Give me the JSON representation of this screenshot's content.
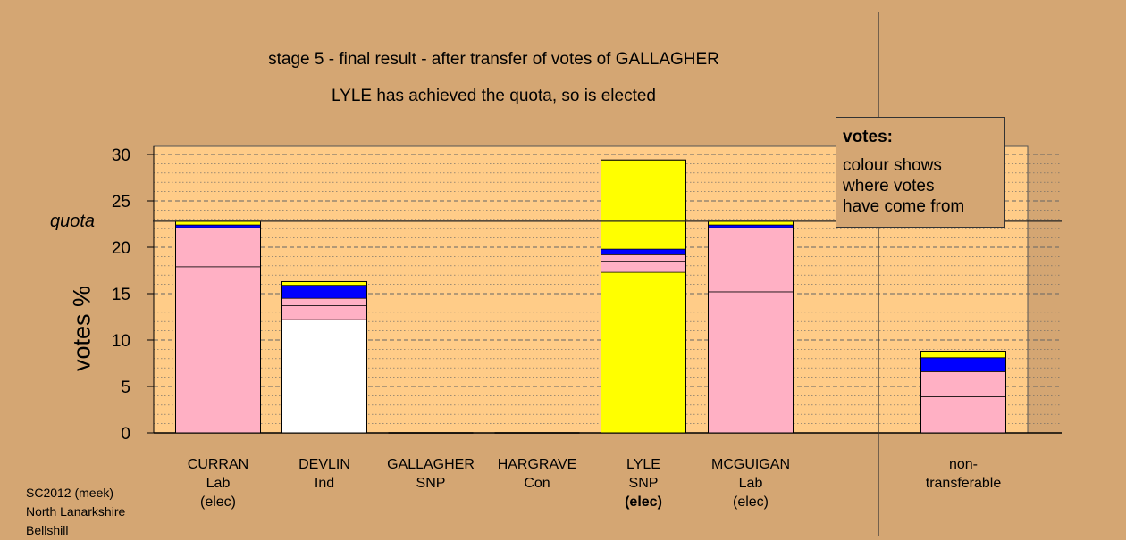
{
  "title_line1": "stage 5 - final result - after transfer of votes of GALLAGHER",
  "title_line2": "LYLE has achieved the quota, so is elected",
  "legend": {
    "heading": "votes:",
    "text": [
      "colour shows",
      "where votes",
      "have come from"
    ]
  },
  "footer": [
    "SC2012 (meek)",
    "North Lanarkshire",
    "Bellshill"
  ],
  "colors": {
    "background": "#d4a673",
    "plot_area": "#ffcc88",
    "Lab": "#ffb0c4",
    "Ind": "#ffffff",
    "SNP": "#ffff00",
    "Con": "#0000ff"
  },
  "chart_data": {
    "type": "bar",
    "stacked": true,
    "ylabel": "votes %",
    "ylim": [
      0,
      30
    ],
    "yticks": [
      "0",
      "5",
      "10",
      "15",
      "20",
      "25",
      "30"
    ],
    "quota": 22.8,
    "quota_label": "quota",
    "categories": [
      {
        "name": "CURRAN",
        "lines": [
          "Lab",
          "(elec)"
        ],
        "bold_line": -1,
        "segments": [
          {
            "party": "Lab",
            "value": 17.9
          },
          {
            "party": "Lab",
            "value": 4.2
          },
          {
            "party": "Con",
            "value": 0.3
          },
          {
            "party": "SNP",
            "value": 0.4
          }
        ]
      },
      {
        "name": "DEVLIN",
        "lines": [
          "Ind"
        ],
        "bold_line": -1,
        "segments": [
          {
            "party": "Ind",
            "value": 12.2
          },
          {
            "party": "Lab",
            "value": 1.5
          },
          {
            "party": "Lab",
            "value": 0.8
          },
          {
            "party": "Con",
            "value": 1.4
          },
          {
            "party": "SNP",
            "value": 0.4
          }
        ]
      },
      {
        "name": "GALLAGHER",
        "lines": [
          "SNP"
        ],
        "bold_line": -1,
        "segments": []
      },
      {
        "name": "HARGRAVE",
        "lines": [
          "Con"
        ],
        "bold_line": -1,
        "segments": []
      },
      {
        "name": "LYLE",
        "lines": [
          "SNP",
          "(elec)"
        ],
        "bold_line": 1,
        "segments": [
          {
            "party": "SNP",
            "value": 17.3
          },
          {
            "party": "Lab",
            "value": 1.2
          },
          {
            "party": "Lab",
            "value": 0.7
          },
          {
            "party": "Con",
            "value": 0.6
          },
          {
            "party": "SNP",
            "value": 9.6
          }
        ]
      },
      {
        "name": "MCGUIGAN",
        "lines": [
          "Lab",
          "(elec)"
        ],
        "bold_line": -1,
        "segments": [
          {
            "party": "Lab",
            "value": 15.2
          },
          {
            "party": "Lab",
            "value": 6.9
          },
          {
            "party": "Con",
            "value": 0.3
          },
          {
            "party": "SNP",
            "value": 0.4
          }
        ]
      }
    ],
    "nontransferable": {
      "lines": [
        "non-",
        "transferable"
      ],
      "segments": [
        {
          "party": "Lab",
          "value": 3.9
        },
        {
          "party": "Lab",
          "value": 2.7
        },
        {
          "party": "Con",
          "value": 1.5
        },
        {
          "party": "SNP",
          "value": 0.7
        }
      ]
    }
  }
}
